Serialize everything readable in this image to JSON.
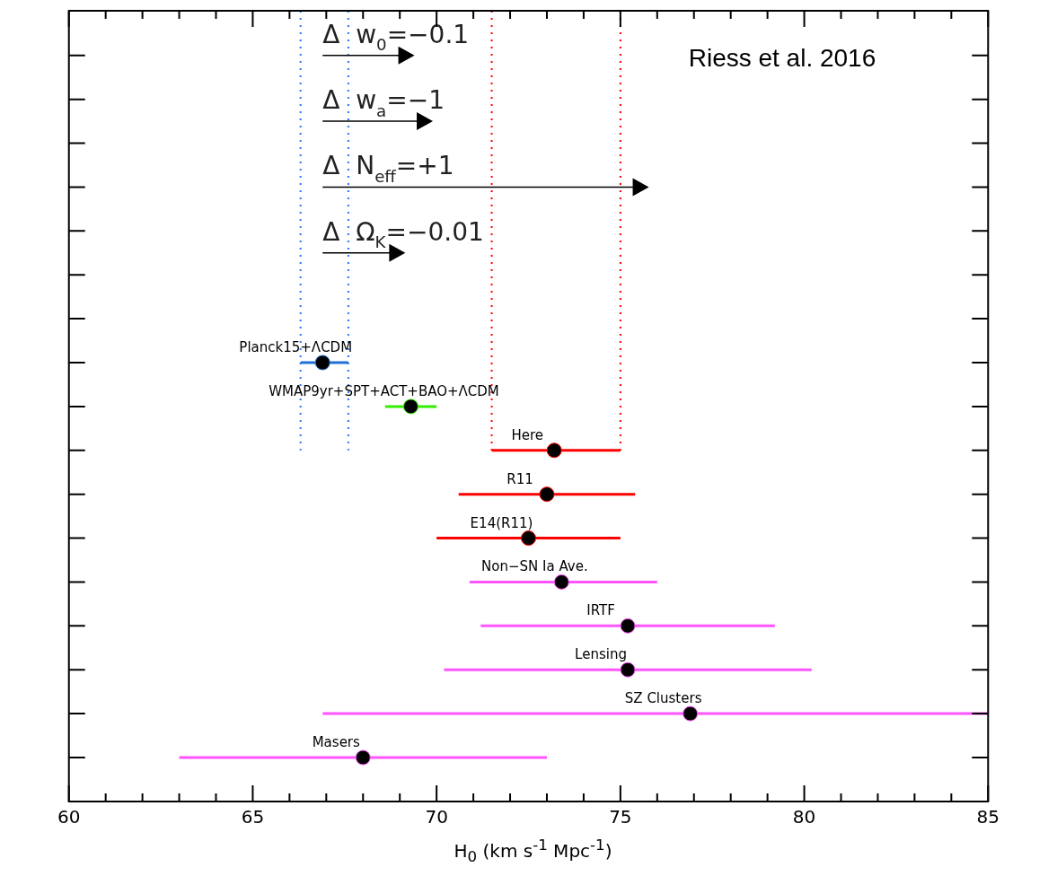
{
  "chart_data": {
    "type": "scatter",
    "orientation": "horizontal",
    "xlabel": "H$_{0}$ (km s$^{-1}$ Mpc$^{-1}$)",
    "categories": [
      "Planck15+ΛCDM",
      "WMAP9yr+SPT+ACT+BAO+ΛCDM",
      "Here",
      "R11",
      "E14(R11)",
      "Non−SN Ia Ave.",
      "IRTF",
      "Lensing",
      "SZ Clusters",
      "Masers"
    ],
    "series": [
      {
        "color": "#1f6fd6",
        "values": [
          66.9,
          null,
          null,
          null,
          null,
          null,
          null,
          null,
          null,
          null
        ],
        "errors": [
          [
            66.3,
            67.6
          ],
          null,
          null,
          null,
          null,
          null,
          null,
          null,
          null,
          null
        ]
      },
      {
        "color": "#33ee00",
        "values": [
          null,
          69.3,
          null,
          null,
          null,
          null,
          null,
          null,
          null,
          null
        ],
        "errors": [
          null,
          [
            68.6,
            70.0
          ],
          null,
          null,
          null,
          null,
          null,
          null,
          null,
          null
        ]
      },
      {
        "color": "#ff0000",
        "values": [
          null,
          null,
          73.2,
          73.0,
          72.5,
          null,
          null,
          null,
          null,
          null
        ],
        "errors": [
          null,
          null,
          [
            71.5,
            75.0
          ],
          [
            70.6,
            75.4
          ],
          [
            70.0,
            75.0
          ],
          null,
          null,
          null,
          null,
          null
        ]
      },
      {
        "color": "#ff55ff",
        "values": [
          null,
          null,
          null,
          null,
          null,
          73.4,
          75.2,
          75.2,
          76.9,
          68.0
        ],
        "errors": [
          null,
          null,
          null,
          null,
          null,
          [
            70.9,
            76.0
          ],
          [
            71.2,
            79.2
          ],
          [
            70.2,
            80.2
          ],
          [
            66.9,
            85
          ],
          [
            63.0,
            73.0
          ]
        ]
      }
    ],
    "marker": "circle",
    "xlim": [
      60,
      85
    ],
    "xticks": [
      60,
      65,
      70,
      75,
      80,
      85
    ],
    "tick_labels": "x",
    "grid": false,
    "legend": false,
    "ref_lines": [
      {
        "axis": "x",
        "value": 66.3,
        "color": "#2277ff",
        "line_style": "dotted"
      },
      {
        "axis": "x",
        "value": 67.6,
        "color": "#2277ff",
        "line_style": "dotted"
      },
      {
        "axis": "x",
        "value": 71.5,
        "color": "#ff0000",
        "line_style": "dotted"
      },
      {
        "axis": "x",
        "value": 75.0,
        "color": "#ff0000",
        "line_style": "dotted"
      }
    ],
    "annotations": [
      "Δ  w$_{0}$=−0.1",
      "Δ  w$_{a}$=−1",
      "Δ  N$_{eff}$=+1",
      "Δ  Ω$_{K}$=−0.01",
      "Riess et al. 2016"
    ]
  }
}
